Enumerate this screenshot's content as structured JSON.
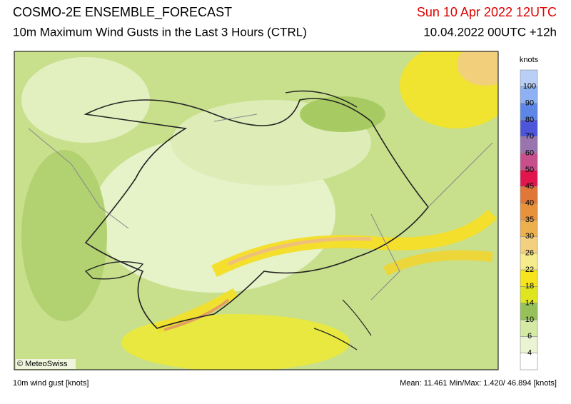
{
  "header": {
    "title": "COSMO-2E ENSEMBLE_FORECAST",
    "subtitle": "10m Maximum Wind Gusts in the Last 3 Hours (CTRL)",
    "valid_time": "Sun 10 Apr 2022 12UTC",
    "run_time": "10.04.2022 00UTC +12h"
  },
  "map": {
    "credit": "© MeteoSwiss"
  },
  "legend": {
    "unit": "knots",
    "levels": [
      4,
      6,
      10,
      14,
      18,
      22,
      26,
      30,
      35,
      40,
      45,
      50,
      60,
      70,
      80,
      90,
      100
    ],
    "colors": [
      "#ffffff",
      "#eaf4d2",
      "#d3e9a4",
      "#96c15a",
      "#dfe620",
      "#f6e41c",
      "#f6ec8c",
      "#f2d080",
      "#edb04e",
      "#e8923c",
      "#df7738",
      "#e2164c",
      "#c64f8c",
      "#9a74ae",
      "#4d55d8",
      "#5d86e6",
      "#8db1f2",
      "#b9cff6"
    ]
  },
  "footer": {
    "variable": "10m wind gust [knots]",
    "stats": "Mean:  11.461 Min/Max:  1.420/ 46.894 [knots]"
  }
}
